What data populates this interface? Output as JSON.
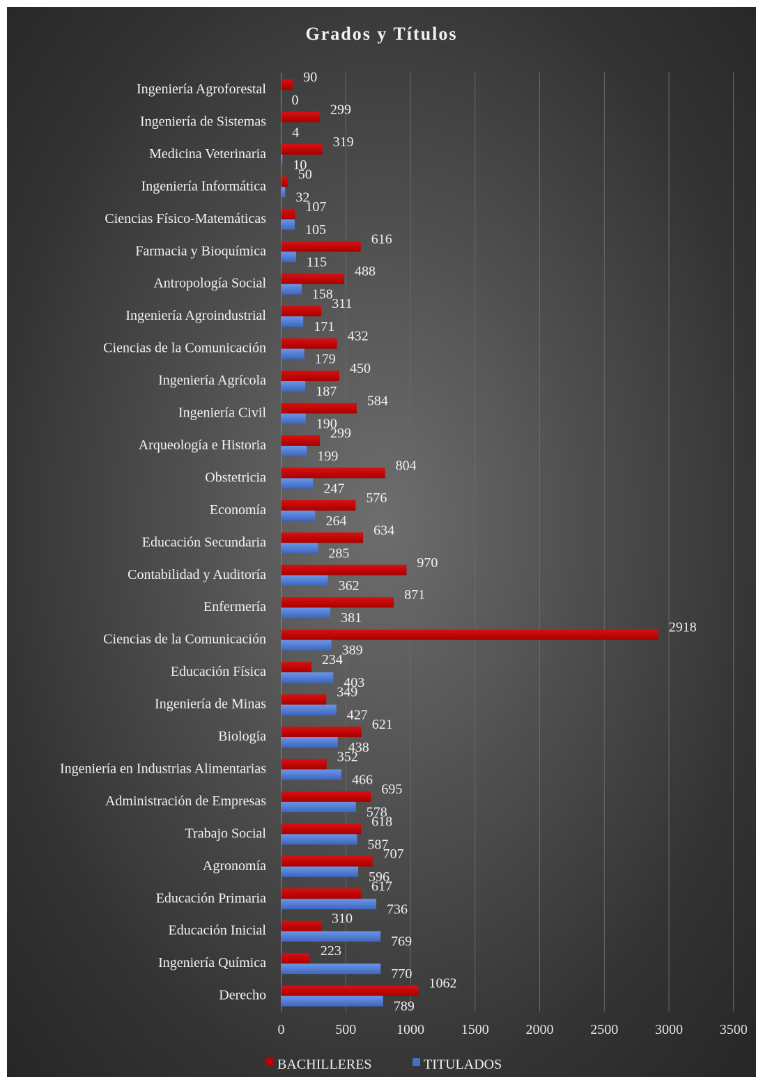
{
  "chart_data": {
    "type": "bar",
    "orientation": "horizontal",
    "title": "Grados y Títulos",
    "categories": [
      "Ingeniería Agroforestal",
      "Ingeniería de Sistemas",
      "Medicina Veterinaria",
      "Ingeniería Informática",
      "Ciencias Físico-Matemáticas",
      "Farmacia y Bioquímica",
      "Antropología Social",
      "Ingeniería Agroindustrial",
      "Ciencias de la Comunicación",
      "Ingeniería Agrícola",
      "Ingeniería Civil",
      "Arqueología e Historia",
      "Obstetricia",
      "Economía",
      "Educación Secundaria",
      "Contabilidad y Auditoría",
      "Enfermería",
      "Ciencias de la Comunicación ",
      "Educación Física",
      "Ingeniería de Minas",
      "Biología",
      "Ingeniería en Industrias Alimentarias",
      "Administración de Empresas",
      "Trabajo Social",
      "Agronomía",
      "Educación Primaria",
      "Educación Inicial",
      "Ingeniería Química",
      "Derecho"
    ],
    "series": [
      {
        "name": "BACHILLERES",
        "color": "#c00000",
        "values": [
          90,
          299,
          319,
          50,
          107,
          616,
          488,
          311,
          432,
          450,
          584,
          299,
          804,
          576,
          634,
          970,
          871,
          2918,
          234,
          349,
          621,
          352,
          695,
          618,
          707,
          617,
          310,
          223,
          1062
        ]
      },
      {
        "name": "TITULADOS",
        "color": "#4472c4",
        "values": [
          0,
          4,
          10,
          32,
          105,
          115,
          158,
          171,
          179,
          187,
          190,
          199,
          247,
          264,
          285,
          362,
          381,
          389,
          403,
          427,
          438,
          466,
          578,
          587,
          596,
          736,
          769,
          770,
          789
        ]
      }
    ],
    "xlim": [
      0,
      3500
    ],
    "x_ticks": [
      "0",
      "500",
      "1000",
      "1500",
      "2000",
      "2500",
      "3000",
      "3500"
    ],
    "grid": "vertical",
    "legend_position": "bottom"
  }
}
